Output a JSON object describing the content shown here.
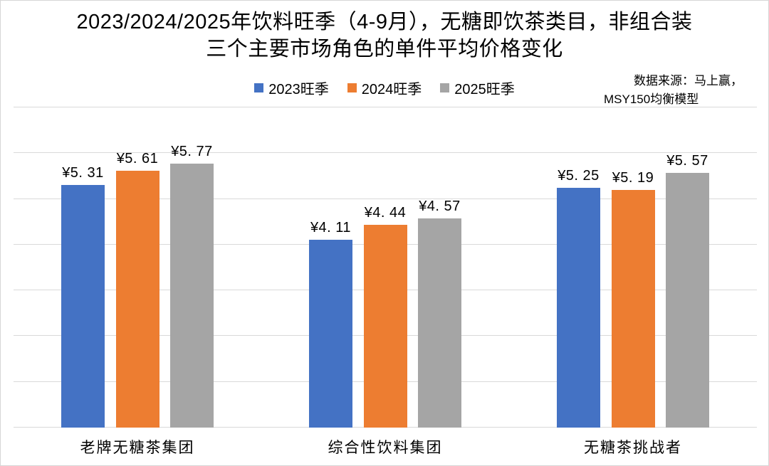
{
  "title": {
    "line1": "2023/2024/2025年饮料旺季（4-9月），无糖即饮茶类目，非组合装",
    "line2": "三个主要市场角色的单件平均价格变化"
  },
  "source_note": {
    "line1": "数据来源：马上赢，",
    "line2": "MSY150均衡模型"
  },
  "chart_data": {
    "type": "bar",
    "title": "2023/2024/2025年饮料旺季（4-9月），无糖即饮茶类目，非组合装 三个主要市场角色的单件平均价格变化",
    "categories": [
      "老牌无糖茶集团",
      "综合性饮料集团",
      "无糖茶挑战者"
    ],
    "series": [
      {
        "name": "2023旺季",
        "color": "#4472C4",
        "values": [
          5.31,
          4.11,
          5.25
        ],
        "labels": [
          "¥5. 31",
          "¥4. 11",
          "¥5. 25"
        ]
      },
      {
        "name": "2024旺季",
        "color": "#ED7D31",
        "values": [
          5.61,
          4.44,
          5.19
        ],
        "labels": [
          "¥5. 61",
          "¥4. 44",
          "¥5. 19"
        ]
      },
      {
        "name": "2025旺季",
        "color": "#A5A5A5",
        "values": [
          5.77,
          4.57,
          5.57
        ],
        "labels": [
          "¥5. 77",
          "¥4. 57",
          "¥5. 57"
        ]
      }
    ],
    "currency_prefix": "¥",
    "ylim": [
      0,
      7
    ],
    "gridline_step": 1,
    "grid_color": "#D9D9D9",
    "grid": "on",
    "yaxis_labels": "hidden",
    "legend_position": "top",
    "legend_labels": [
      "2023旺季",
      "2024旺季",
      "2025旺季"
    ]
  }
}
